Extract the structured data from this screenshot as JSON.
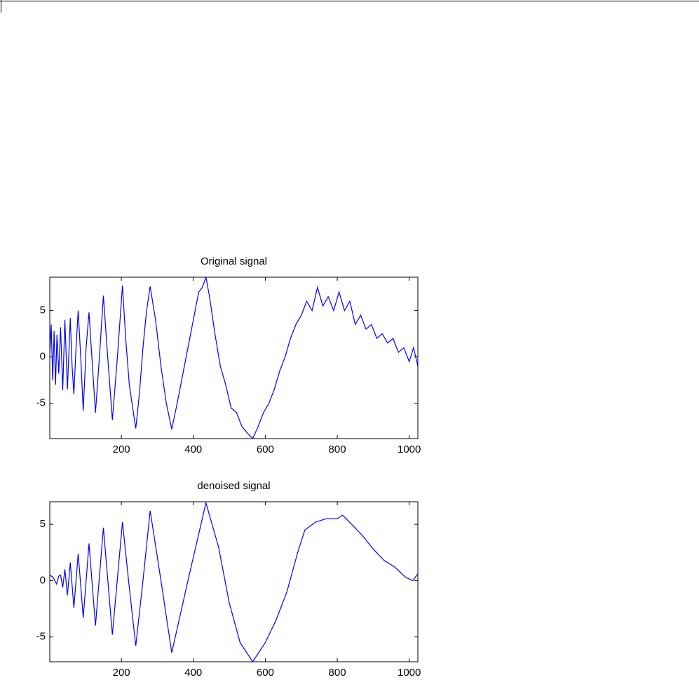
{
  "chart_data": [
    {
      "type": "line",
      "title": "Original signal",
      "x": [
        1,
        5,
        9,
        13,
        17,
        21,
        26,
        31,
        37,
        43,
        50,
        58,
        63,
        68,
        74,
        80,
        87,
        94,
        102,
        110,
        118,
        128,
        139,
        150,
        162,
        175,
        189,
        203,
        212,
        222,
        240,
        250,
        260,
        270,
        280,
        295,
        310,
        325,
        340,
        355,
        370,
        385,
        400,
        415,
        425,
        435,
        445,
        460,
        475,
        490,
        505,
        520,
        535,
        550,
        565,
        580,
        595,
        610,
        625,
        640,
        655,
        670,
        685,
        700,
        715,
        730,
        745,
        760,
        775,
        790,
        805,
        820,
        835,
        850,
        865,
        880,
        895,
        910,
        925,
        940,
        955,
        970,
        985,
        1000,
        1012,
        1024
      ],
      "series": [
        {
          "name": "Original signal",
          "color": "#0000ff",
          "values": [
            0.3,
            3.5,
            -2.5,
            2.8,
            -3,
            2.4,
            -1.8,
            3.2,
            -3.6,
            4,
            -3.5,
            4.2,
            -1,
            -4,
            1,
            5,
            0,
            -5.8,
            1,
            4.8,
            0,
            -6,
            0,
            6.6,
            0,
            -6.8,
            0,
            7.7,
            2,
            -3,
            -7.7,
            -4,
            1,
            5,
            7.6,
            4,
            -1,
            -5,
            -7.8,
            -5,
            -2,
            1,
            4,
            7,
            7.5,
            8.6,
            6.5,
            2.5,
            -1,
            -3,
            -5.5,
            -6,
            -7.5,
            -8.2,
            -8.8,
            -7.5,
            -6,
            -5,
            -3.5,
            -1.5,
            0,
            2,
            3.5,
            4.5,
            6,
            5,
            7.5,
            5.5,
            6.5,
            5,
            7,
            5,
            6,
            3.5,
            4.5,
            3,
            3.5,
            2,
            2.5,
            1.5,
            2,
            0.5,
            1,
            -0.5,
            1,
            -1
          ]
        }
      ],
      "xlim": [
        1,
        1024
      ],
      "xticks": [
        200,
        400,
        600,
        800,
        1000
      ],
      "ylim": [
        -8.8,
        8.6
      ],
      "yticks": [
        -5,
        0,
        5
      ]
    },
    {
      "type": "line",
      "title": "denoised signal",
      "x": [
        1,
        10,
        20,
        26,
        31,
        37,
        43,
        50,
        58,
        68,
        80,
        94,
        110,
        128,
        150,
        175,
        203,
        220,
        240,
        260,
        280,
        310,
        340,
        385,
        435,
        470,
        500,
        530,
        565,
        600,
        630,
        660,
        690,
        710,
        740,
        770,
        800,
        815,
        840,
        870,
        900,
        930,
        960,
        990,
        1010,
        1024
      ],
      "series": [
        {
          "name": "denoised signal",
          "color": "#0000ff",
          "values": [
            0.5,
            0.3,
            -0.3,
            0.4,
            0.5,
            -0.6,
            1,
            -1.3,
            1.6,
            -2.4,
            2.4,
            -3.3,
            3.3,
            -4,
            4.7,
            -4.8,
            5.2,
            0,
            -5.8,
            0,
            6.2,
            0,
            -6.4,
            0,
            6.9,
            3,
            -2,
            -5.5,
            -7.2,
            -5.5,
            -3.5,
            -1,
            2.5,
            4.5,
            5.2,
            5.5,
            5.5,
            5.8,
            5,
            4,
            2.8,
            1.8,
            1.2,
            0.3,
            0,
            0.6
          ]
        }
      ],
      "xlim": [
        1,
        1024
      ],
      "xticks": [
        200,
        400,
        600,
        800,
        1000
      ],
      "ylim": [
        -7.2,
        7
      ],
      "yticks": [
        -5,
        0,
        5
      ]
    }
  ]
}
